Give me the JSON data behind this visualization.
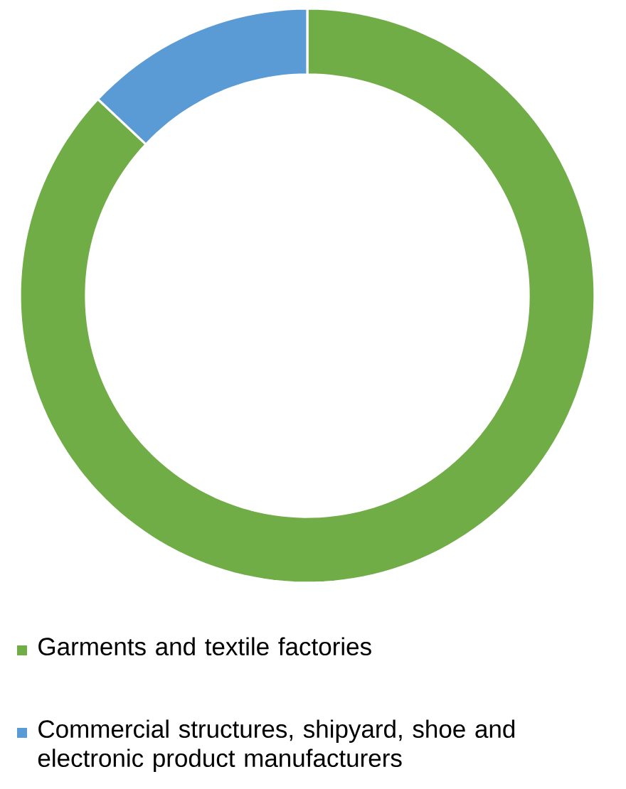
{
  "chart_data": {
    "type": "donut",
    "categories": [
      "Garments and textile factories",
      "Commercial structures, shipyard, shoe and electronic product manufacturers"
    ],
    "values": [
      87,
      13
    ],
    "colors": [
      "#70ad47",
      "#5b9bd5"
    ],
    "legend": "bottom"
  }
}
